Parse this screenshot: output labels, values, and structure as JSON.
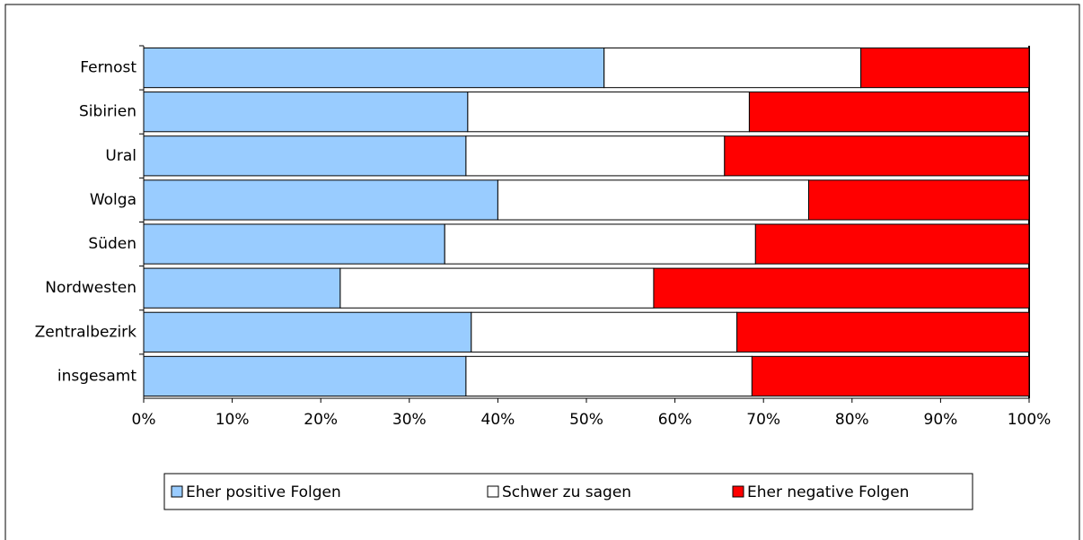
{
  "chart_data": {
    "type": "stacked-barh",
    "categories": [
      "Fernost",
      "Sibirien",
      "Ural",
      "Wolga",
      "Süden",
      "Nordwesten",
      "Zentralbezirk",
      "insgesamt"
    ],
    "series": [
      {
        "name": "Eher positive Folgen",
        "color": "#99ccff",
        "values": [
          52,
          36.6,
          36.4,
          40,
          34,
          22.2,
          37,
          36.4
        ]
      },
      {
        "name": "Schwer zu sagen",
        "color": "#ffffff",
        "values": [
          29,
          31.8,
          29.2,
          35.1,
          35.1,
          35.4,
          30,
          32.3
        ]
      },
      {
        "name": "Eher negative Folgen",
        "color": "#ff0000",
        "values": [
          19,
          31.6,
          34.4,
          24.9,
          30.9,
          42.4,
          33,
          31.3
        ]
      }
    ],
    "xlim": [
      0,
      100
    ],
    "xticks": [
      {
        "value": 0,
        "label": "0%"
      },
      {
        "value": 10,
        "label": "10%"
      },
      {
        "value": 20,
        "label": "20%"
      },
      {
        "value": 30,
        "label": "30%"
      },
      {
        "value": 40,
        "label": "40%"
      },
      {
        "value": 50,
        "label": "50%"
      },
      {
        "value": 60,
        "label": "60%"
      },
      {
        "value": 70,
        "label": "70%"
      },
      {
        "value": 80,
        "label": "80%"
      },
      {
        "value": 90,
        "label": "90%"
      },
      {
        "value": 100,
        "label": "100%"
      }
    ],
    "legend": "bottom"
  }
}
